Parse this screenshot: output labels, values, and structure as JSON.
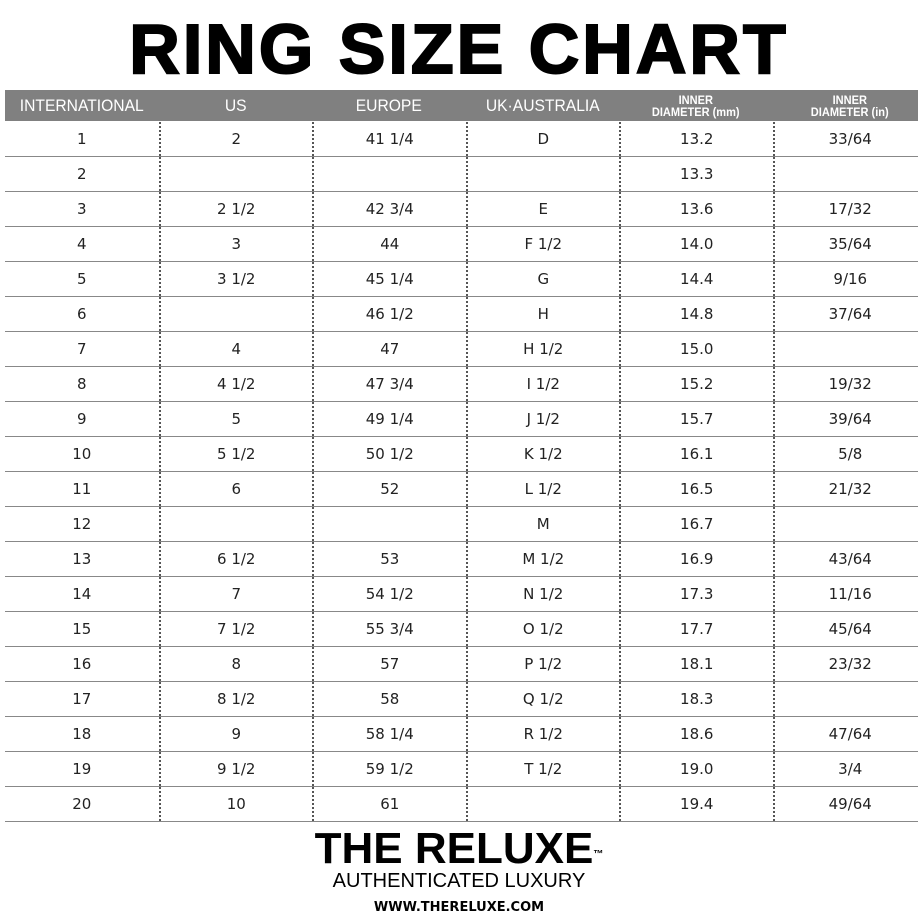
{
  "title": "RING SIZE CHART",
  "columns": [
    {
      "line1": "INTERNATIONAL",
      "line2": ""
    },
    {
      "line1": "US",
      "line2": ""
    },
    {
      "line1": "EUROPE",
      "line2": ""
    },
    {
      "line1": "UK·AUSTRALIA",
      "line2": ""
    },
    {
      "line1": "INNER",
      "line2": "DIAMETER (mm)"
    },
    {
      "line1": "INNER",
      "line2": "DIAMETER (in)"
    }
  ],
  "rows": [
    [
      "1",
      "2",
      "41 1/4",
      "D",
      "13.2",
      "33/64"
    ],
    [
      "2",
      "",
      "",
      "",
      "13.3",
      ""
    ],
    [
      "3",
      "2 1/2",
      "42 3/4",
      "E",
      "13.6",
      "17/32"
    ],
    [
      "4",
      "3",
      "44",
      "F 1/2",
      "14.0",
      "35/64"
    ],
    [
      "5",
      "3 1/2",
      "45 1/4",
      "G",
      "14.4",
      "9/16"
    ],
    [
      "6",
      "",
      "46 1/2",
      "H",
      "14.8",
      "37/64"
    ],
    [
      "7",
      "4",
      "47",
      "H 1/2",
      "15.0",
      ""
    ],
    [
      "8",
      "4 1/2",
      "47 3/4",
      "I 1/2",
      "15.2",
      "19/32"
    ],
    [
      "9",
      "5",
      "49 1/4",
      "J 1/2",
      "15.7",
      "39/64"
    ],
    [
      "10",
      "5 1/2",
      "50 1/2",
      "K 1/2",
      "16.1",
      "5/8"
    ],
    [
      "11",
      "6",
      "52",
      "L 1/2",
      "16.5",
      "21/32"
    ],
    [
      "12",
      "",
      "",
      "M",
      "16.7",
      ""
    ],
    [
      "13",
      "6 1/2",
      "53",
      "M 1/2",
      "16.9",
      "43/64"
    ],
    [
      "14",
      "7",
      "54 1/2",
      "N 1/2",
      "17.3",
      "11/16"
    ],
    [
      "15",
      "7 1/2",
      "55 3/4",
      "O 1/2",
      "17.7",
      "45/64"
    ],
    [
      "16",
      "8",
      "57",
      "P 1/2",
      "18.1",
      "23/32"
    ],
    [
      "17",
      "8 1/2",
      "58",
      "Q 1/2",
      "18.3",
      ""
    ],
    [
      "18",
      "9",
      "58 1/4",
      "R 1/2",
      "18.6",
      "47/64"
    ],
    [
      "19",
      "9 1/2",
      "59 1/2",
      "T 1/2",
      "19.0",
      "3/4"
    ],
    [
      "20",
      "10",
      "61",
      "",
      "19.4",
      "49/64"
    ]
  ],
  "brand": {
    "name": "THE RELUXE",
    "trademark": "™",
    "tagline": "AUTHENTICATED LUXURY",
    "website": "WWW.THERELUXE.COM"
  },
  "colors": {
    "header_bg": "#808080",
    "header_text": "#ffffff"
  }
}
